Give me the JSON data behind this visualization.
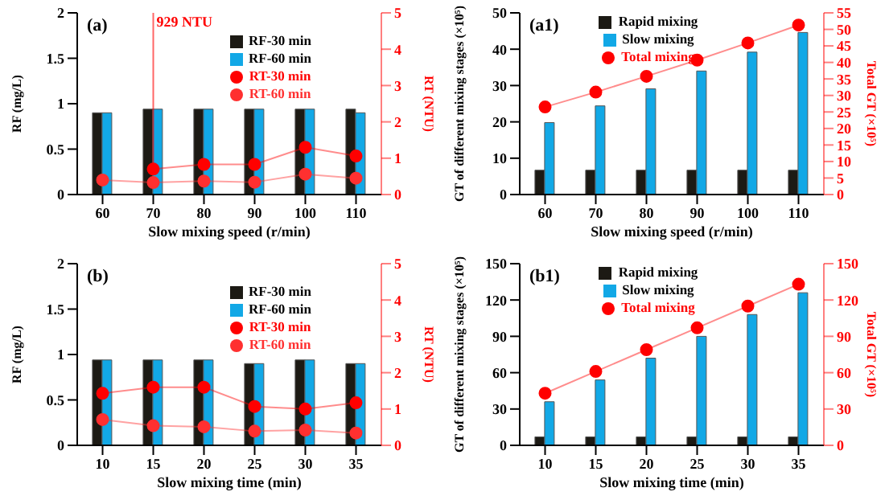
{
  "chart_data": [
    {
      "type": "bar",
      "title": "(a)",
      "categories": [
        "60",
        "70",
        "80",
        "90",
        "100",
        "110"
      ],
      "xlabel": "Slow mixing speed (r/min)",
      "ylabel": "RF (mg/L)",
      "y2label": "RT (NTU)",
      "ylim": [
        0,
        2
      ],
      "yticks": [
        0,
        0.5,
        1,
        1.5,
        2
      ],
      "y2lim": [
        0,
        5
      ],
      "y2ticks": [
        0,
        1,
        2,
        3,
        4,
        5
      ],
      "legend": "top right",
      "marker": "circle",
      "ref_lines": [
        {
          "axis": "x",
          "value": "70",
          "label": "929 NTU",
          "color": "#ff0000"
        }
      ],
      "series": [
        {
          "name": "RF-30 min",
          "color": "#1c1a14",
          "values": [
            0.9,
            0.94,
            0.94,
            0.94,
            0.94,
            0.94
          ]
        },
        {
          "name": "RF-60 min",
          "color": "#12a8e6",
          "values": [
            0.9,
            0.94,
            0.94,
            0.94,
            0.94,
            0.9
          ]
        },
        {
          "name": "RT-30 min",
          "type": "line",
          "axis": "y2",
          "color": "#ff0000",
          "values": [
            null,
            0.7,
            0.83,
            0.83,
            1.3,
            1.06
          ]
        },
        {
          "name": "RT-60 min",
          "type": "line",
          "axis": "y2",
          "color": "#ff3030",
          "values": [
            0.4,
            0.33,
            0.37,
            0.34,
            0.56,
            0.45
          ]
        }
      ]
    },
    {
      "type": "bar",
      "title": "(a1)",
      "categories": [
        "60",
        "70",
        "80",
        "90",
        "100",
        "110"
      ],
      "xlabel": "Slow mixing speed (r/min)",
      "ylabel": "GT of different mixing stages (×10⁵)",
      "y2label": "Total GT (×10⁵)",
      "ylim": [
        0,
        50
      ],
      "yticks": [
        0,
        10,
        20,
        30,
        40,
        50
      ],
      "y2lim": [
        0,
        55
      ],
      "y2ticks": [
        0,
        5,
        10,
        15,
        20,
        25,
        30,
        35,
        40,
        45,
        50,
        55
      ],
      "legend": "top left",
      "marker": "circle",
      "series": [
        {
          "name": "Rapid mixing",
          "color": "#1c1a14",
          "values": [
            6.7,
            6.7,
            6.7,
            6.7,
            6.7,
            6.7
          ]
        },
        {
          "name": "Slow mixing",
          "color": "#12a8e6",
          "values": [
            19.8,
            24.4,
            29.1,
            34,
            39.2,
            44.6
          ]
        },
        {
          "name": "Total mixing",
          "type": "line",
          "axis": "y2",
          "color": "#ff0000",
          "values": [
            26.5,
            31,
            35.8,
            40.7,
            45.9,
            51.3
          ]
        }
      ]
    },
    {
      "type": "bar",
      "title": "(b)",
      "categories": [
        "10",
        "15",
        "20",
        "25",
        "30",
        "35"
      ],
      "xlabel": "Slow mixing time (min)",
      "ylabel": "RF (mg/L)",
      "y2label": "RT (NTU)",
      "ylim": [
        0,
        2
      ],
      "yticks": [
        0,
        0.5,
        1,
        1.5,
        2
      ],
      "y2lim": [
        0,
        5
      ],
      "y2ticks": [
        0,
        1,
        2,
        3,
        4,
        5
      ],
      "legend": "top right",
      "marker": "circle",
      "series": [
        {
          "name": "RF-30 min",
          "color": "#1c1a14",
          "values": [
            0.94,
            0.94,
            0.94,
            0.9,
            0.94,
            0.9
          ]
        },
        {
          "name": "RF-60 min",
          "color": "#12a8e6",
          "values": [
            0.94,
            0.94,
            0.94,
            0.9,
            0.94,
            0.9
          ]
        },
        {
          "name": "RT-30 min",
          "type": "line",
          "axis": "y2",
          "color": "#ff0000",
          "values": [
            1.43,
            1.6,
            1.6,
            1.07,
            1,
            1.17
          ]
        },
        {
          "name": "RT-60 min",
          "type": "line",
          "axis": "y2",
          "color": "#ff3030",
          "values": [
            0.71,
            0.54,
            0.51,
            0.39,
            0.42,
            0.34
          ]
        }
      ]
    },
    {
      "type": "bar",
      "title": "(b1)",
      "categories": [
        "10",
        "15",
        "20",
        "25",
        "30",
        "35"
      ],
      "xlabel": "Slow mixing time (min)",
      "ylabel": "GT of different mixing stages (×10⁵)",
      "y2label": "Total GT (×10⁵)",
      "ylim": [
        0,
        150
      ],
      "yticks": [
        0,
        30,
        60,
        90,
        120,
        150
      ],
      "y2lim": [
        0,
        150
      ],
      "y2ticks": [
        0,
        30,
        60,
        90,
        120,
        150
      ],
      "legend": "top left",
      "marker": "circle",
      "series": [
        {
          "name": "Rapid mixing",
          "color": "#1c1a14",
          "values": [
            7,
            7,
            7,
            7,
            7,
            7
          ]
        },
        {
          "name": "Slow mixing",
          "color": "#12a8e6",
          "values": [
            36,
            54,
            72,
            90,
            108,
            126
          ]
        },
        {
          "name": "Total mixing",
          "type": "line",
          "axis": "y2",
          "color": "#ff0000",
          "values": [
            43,
            61,
            79,
            97,
            115,
            133
          ]
        }
      ]
    }
  ]
}
